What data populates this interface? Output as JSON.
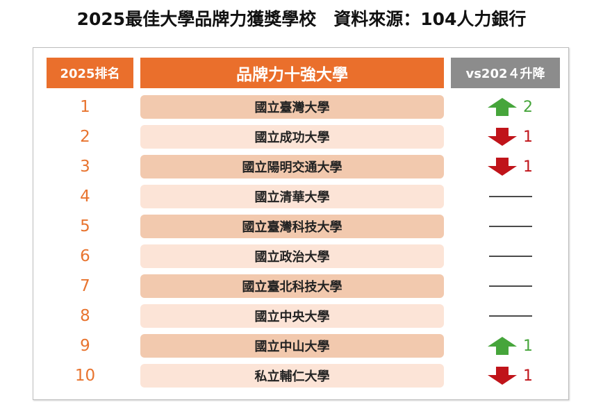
{
  "title": "2025最佳大學品牌力獲獎學校　資料來源：104人力銀行",
  "table": {
    "headers": {
      "rank": "2025排名",
      "name": "品牌力十強大學",
      "change": "vs202４升降"
    },
    "rows": [
      {
        "rank": "1",
        "name": "國立臺灣大學",
        "direction": "up",
        "change": "2"
      },
      {
        "rank": "2",
        "name": "國立成功大學",
        "direction": "down",
        "change": "1"
      },
      {
        "rank": "3",
        "name": "國立陽明交通大學",
        "direction": "down",
        "change": "1"
      },
      {
        "rank": "4",
        "name": "國立清華大學",
        "direction": "none",
        "change": ""
      },
      {
        "rank": "5",
        "name": "國立臺灣科技大學",
        "direction": "none",
        "change": ""
      },
      {
        "rank": "6",
        "name": "國立政治大學",
        "direction": "none",
        "change": ""
      },
      {
        "rank": "7",
        "name": "國立臺北科技大學",
        "direction": "none",
        "change": ""
      },
      {
        "rank": "8",
        "name": "國立中央大學",
        "direction": "none",
        "change": ""
      },
      {
        "rank": "9",
        "name": "國立中山大學",
        "direction": "up",
        "change": "1"
      },
      {
        "rank": "10",
        "name": "私立輔仁大學",
        "direction": "down",
        "change": "1"
      }
    ]
  },
  "colors": {
    "accent": "#ea6f2c",
    "header_gray": "#8c8c8c",
    "row_dark": "#f2c9ae",
    "row_light": "#fce4d7",
    "up": "#46a53b",
    "down": "#c0141a"
  }
}
